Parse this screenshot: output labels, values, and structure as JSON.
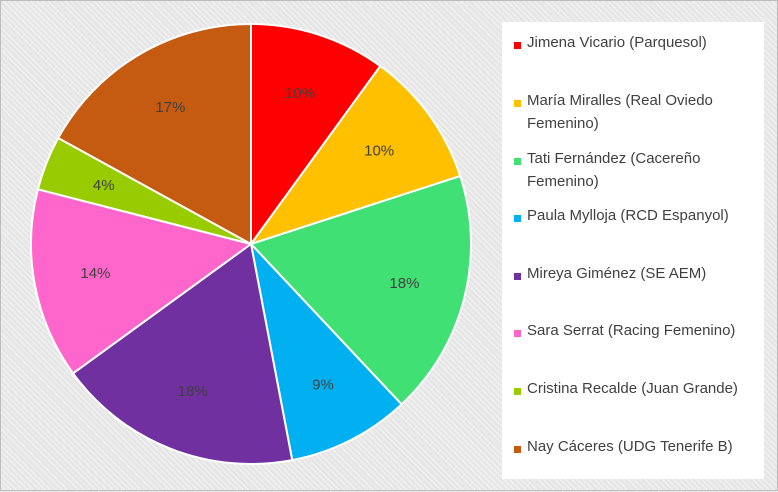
{
  "chart_data": {
    "type": "pie",
    "title": "",
    "legend_position": "right",
    "slices": [
      {
        "name": "Jimena Vicario (Parquesol)",
        "value": 10,
        "label": "10%",
        "color": "#ff0000"
      },
      {
        "name": "María Miralles (Real Oviedo Femenino)",
        "value": 10,
        "label": "10%",
        "color": "#ffc000"
      },
      {
        "name": "Tati Fernández (Cacereño Femenino)",
        "value": 18,
        "label": "18%",
        "color": "#41e075"
      },
      {
        "name": "Paula Mylloja (RCD Espanyol)",
        "value": 9,
        "label": "9%",
        "color": "#00b0f0"
      },
      {
        "name": "Mireya Giménez (SE AEM)",
        "value": 18,
        "label": "18%",
        "color": "#7030a0"
      },
      {
        "name": "Sara Serrat (Racing Femenino)",
        "value": 14,
        "label": "14%",
        "color": "#ff66cc"
      },
      {
        "name": "Cristina Recalde (Juan Grande)",
        "value": 4,
        "label": "4%",
        "color": "#99cc00"
      },
      {
        "name": "Nay Cáceres (UDG Tenerife B)",
        "value": 17,
        "label": "17%",
        "color": "#c55a11"
      }
    ]
  }
}
